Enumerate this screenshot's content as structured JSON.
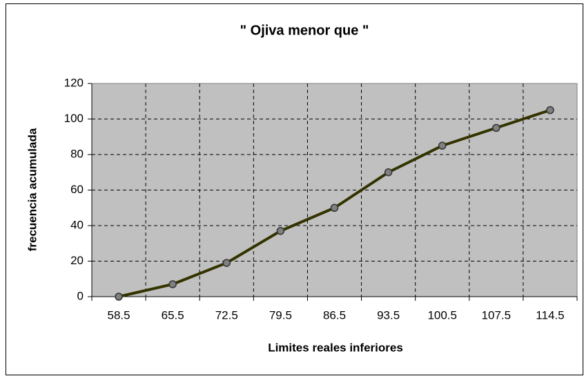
{
  "chart_data": {
    "type": "line",
    "title": "\" Ojiva menor que \"",
    "x_label": "Limites reales inferiores",
    "y_label": "frecuencia acumulada",
    "categories": [
      "58.5",
      "65.5",
      "72.5",
      "79.5",
      "86.5",
      "93.5",
      "100.5",
      "107.5",
      "114.5"
    ],
    "series": [
      {
        "name": "frecuencia acumulada",
        "color": "#333300",
        "values": [
          0,
          7,
          19,
          37,
          50,
          70,
          85,
          95,
          105
        ]
      }
    ],
    "ylim": [
      0,
      120
    ],
    "yticks": [
      0,
      20,
      40,
      60,
      80,
      100,
      120
    ],
    "grid": true
  }
}
